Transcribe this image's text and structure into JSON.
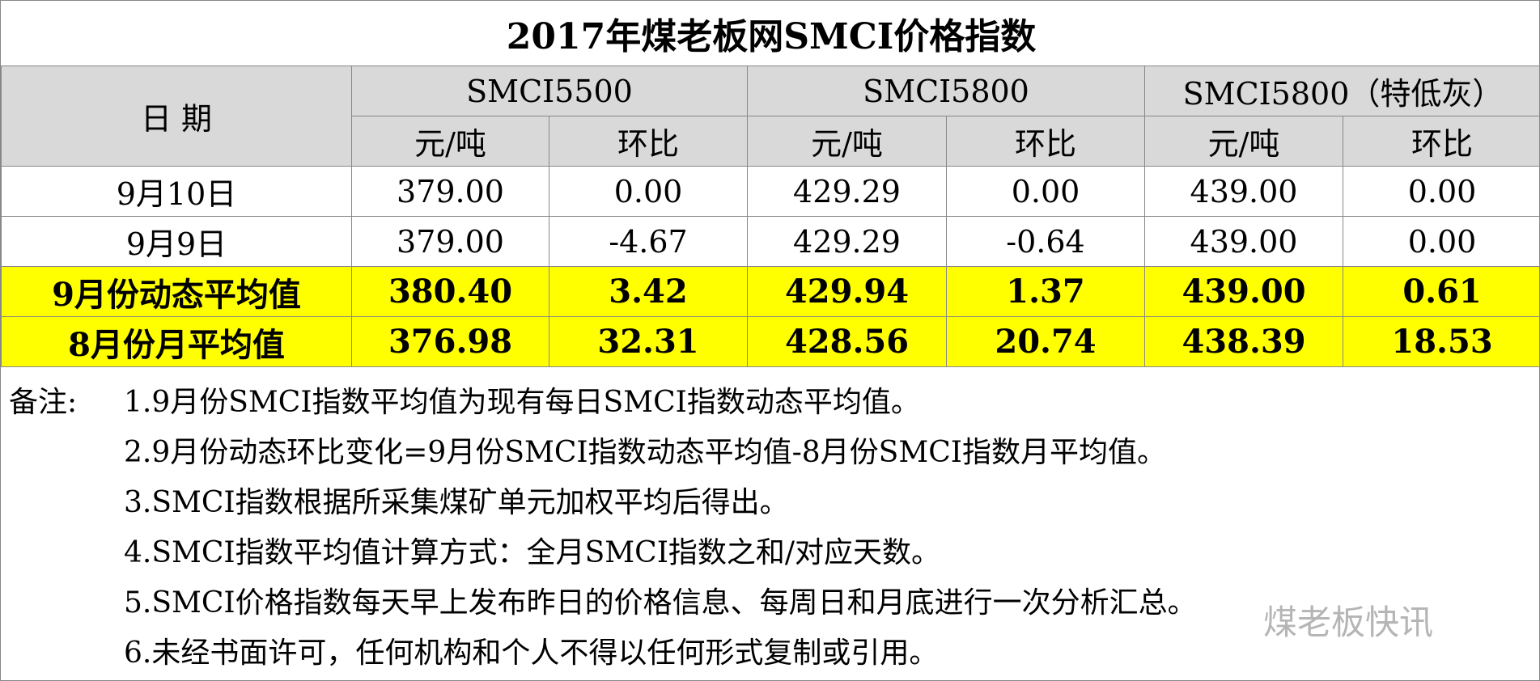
{
  "title": "2017年煤老板网SMCI价格指数",
  "header": {
    "date": "日 期",
    "groups": [
      "SMCI5500",
      "SMCI5800",
      "SMCI5800（特低灰）"
    ],
    "subheaders": [
      "元/吨",
      "环比",
      "元/吨",
      "环比",
      "元/吨",
      "环比"
    ]
  },
  "rows": [
    [
      "9月10日",
      "379.00",
      "0.00",
      "429.29",
      "0.00",
      "439.00",
      "0.00"
    ],
    [
      "9月9日",
      "379.00",
      "-4.67",
      "429.29",
      "-0.64",
      "439.00",
      "0.00"
    ],
    [
      "9月份动态平均值",
      "380.40",
      "3.42",
      "429.94",
      "1.37",
      "439.00",
      "0.61"
    ],
    [
      "8月份月平均值",
      "376.98",
      "32.31",
      "428.56",
      "20.74",
      "438.39",
      "18.53"
    ]
  ],
  "notes": {
    "label": "备注:",
    "items": [
      "1.9月份SMCI指数平均值为现有每日SMCI指数动态平均值。",
      "2.9月份动态环比变化=9月份SMCI指数动态平均值-8月份SMCI指数月平均值。",
      "3.SMCI指数根据所采集煤矿单元加权平均后得出。",
      "4.SMCI指数平均值计算方式：全月SMCI指数之和/对应天数。",
      "5.SMCI价格指数每天早上发布昨日的价格信息、每周日和月底进行一次分析汇总。",
      "6.未经书面许可，任何机构和个人不得以任何形式复制或引用。"
    ]
  },
  "watermark": "煤老板快讯"
}
